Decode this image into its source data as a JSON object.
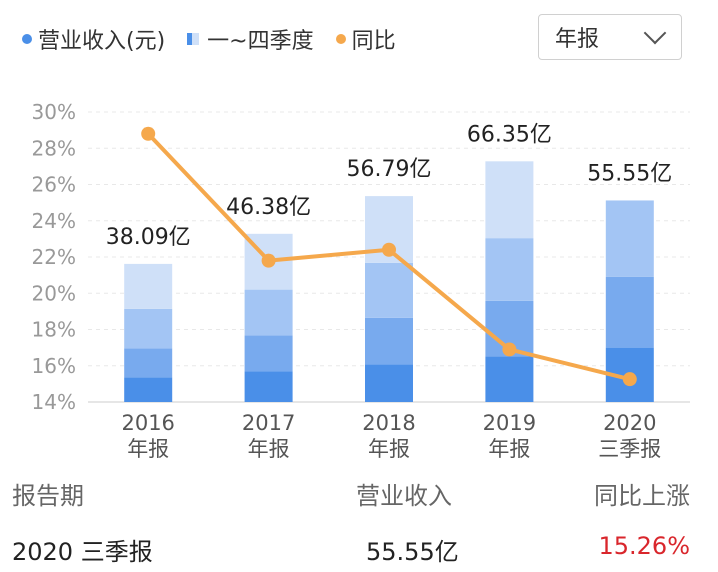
{
  "legend": {
    "revenue": {
      "label": "营业收入(元)",
      "color": "#4a8fe8"
    },
    "quarters": {
      "label": "一~四季度"
    },
    "yoy": {
      "label": "同比",
      "color": "#f5a84c"
    }
  },
  "period_selector": {
    "value": "年报",
    "icon": "chevron-down-icon"
  },
  "chart_data": {
    "type": "bar",
    "categories": [
      [
        "2016",
        "年报"
      ],
      [
        "2017",
        "年报"
      ],
      [
        "2018",
        "年报"
      ],
      [
        "2019",
        "年报"
      ],
      [
        "2020",
        "三季报"
      ]
    ],
    "value_labels": [
      "38.09亿",
      "46.38亿",
      "56.79亿",
      "66.35亿",
      "55.55亿"
    ],
    "revenue_yi": [
      38.09,
      46.38,
      56.79,
      66.35,
      55.55
    ],
    "quarter_segments_yi": [
      [
        6.8,
        8.0,
        10.9,
        12.4
      ],
      [
        8.5,
        9.9,
        12.6,
        15.4
      ],
      [
        10.4,
        12.8,
        15.2,
        18.4
      ],
      [
        12.6,
        15.3,
        17.3,
        21.2
      ],
      [
        15.0,
        19.5,
        21.1
      ]
    ],
    "segment_colors": [
      "#4a8fe8",
      "#78aaee",
      "#a3c5f4",
      "#cfe0f8"
    ],
    "yoy_percent": [
      28.8,
      21.8,
      22.4,
      16.9,
      15.26
    ],
    "yoy_color": "#f5a84c",
    "y_axis": {
      "ticks": [
        "14%",
        "16%",
        "18%",
        "20%",
        "22%",
        "24%",
        "26%",
        "28%",
        "30%"
      ],
      "min": 14,
      "max": 30
    },
    "grid": true
  },
  "summary": {
    "headers": {
      "period": "报告期",
      "revenue": "营业收入",
      "yoy": "同比上涨"
    },
    "row": {
      "period": "2020 三季报",
      "revenue": "55.55亿",
      "yoy": "15.26%"
    }
  }
}
